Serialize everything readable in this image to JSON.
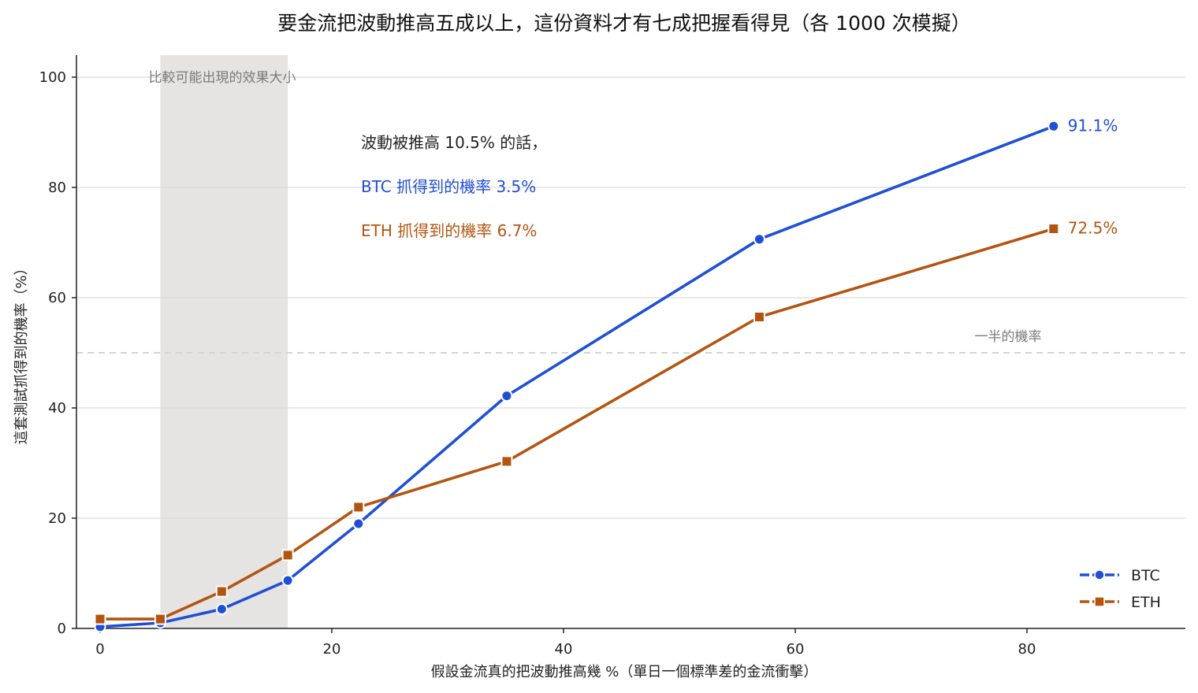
{
  "chart_data": {
    "type": "line",
    "title": "要金流把波動推高五成以上，這份資料才有七成把握看得見（各 1000 次模擬）",
    "xlabel": "假設金流真的把波動推高幾 %（單日一個標準差的金流衝擊）",
    "ylabel": "這套測試抓得到的機率（%）",
    "xlim": [
      -2,
      94
    ],
    "ylim": [
      0,
      104
    ],
    "x_ticks": [
      0,
      20,
      40,
      60,
      80
    ],
    "y_ticks": [
      0,
      20,
      40,
      60,
      80,
      100
    ],
    "grid": "horizontal",
    "legend_position": "bottom-right",
    "series": [
      {
        "name": "BTC",
        "color": "#1f4fd6",
        "marker": "circle",
        "x": [
          0,
          5.2,
          10.5,
          16.2,
          22.3,
          35.1,
          56.9,
          82.3
        ],
        "y": [
          0.3,
          1.0,
          3.5,
          8.7,
          19.0,
          42.2,
          70.6,
          91.1
        ],
        "end_label": "91.1%"
      },
      {
        "name": "ETH",
        "color": "#b35511",
        "marker": "square",
        "x": [
          0,
          5.2,
          10.5,
          16.2,
          22.3,
          35.1,
          56.9,
          82.3
        ],
        "y": [
          1.7,
          1.7,
          6.7,
          13.3,
          22.0,
          30.3,
          56.5,
          72.5
        ],
        "end_label": "72.5%"
      }
    ],
    "shaded_band": {
      "x_range": [
        5.2,
        16.2
      ],
      "label": "比較可能出現的效果大小",
      "color": "#e5e4e2"
    },
    "reference_line": {
      "y": 50,
      "label": "一半的機率",
      "color": "#d3d3d3"
    },
    "annotation": {
      "line1": "波動被推高 10.5% 的話，",
      "line2": "BTC 抓得到的機率 3.5%",
      "line3": "ETH 抓得到的機率 6.7%"
    }
  }
}
